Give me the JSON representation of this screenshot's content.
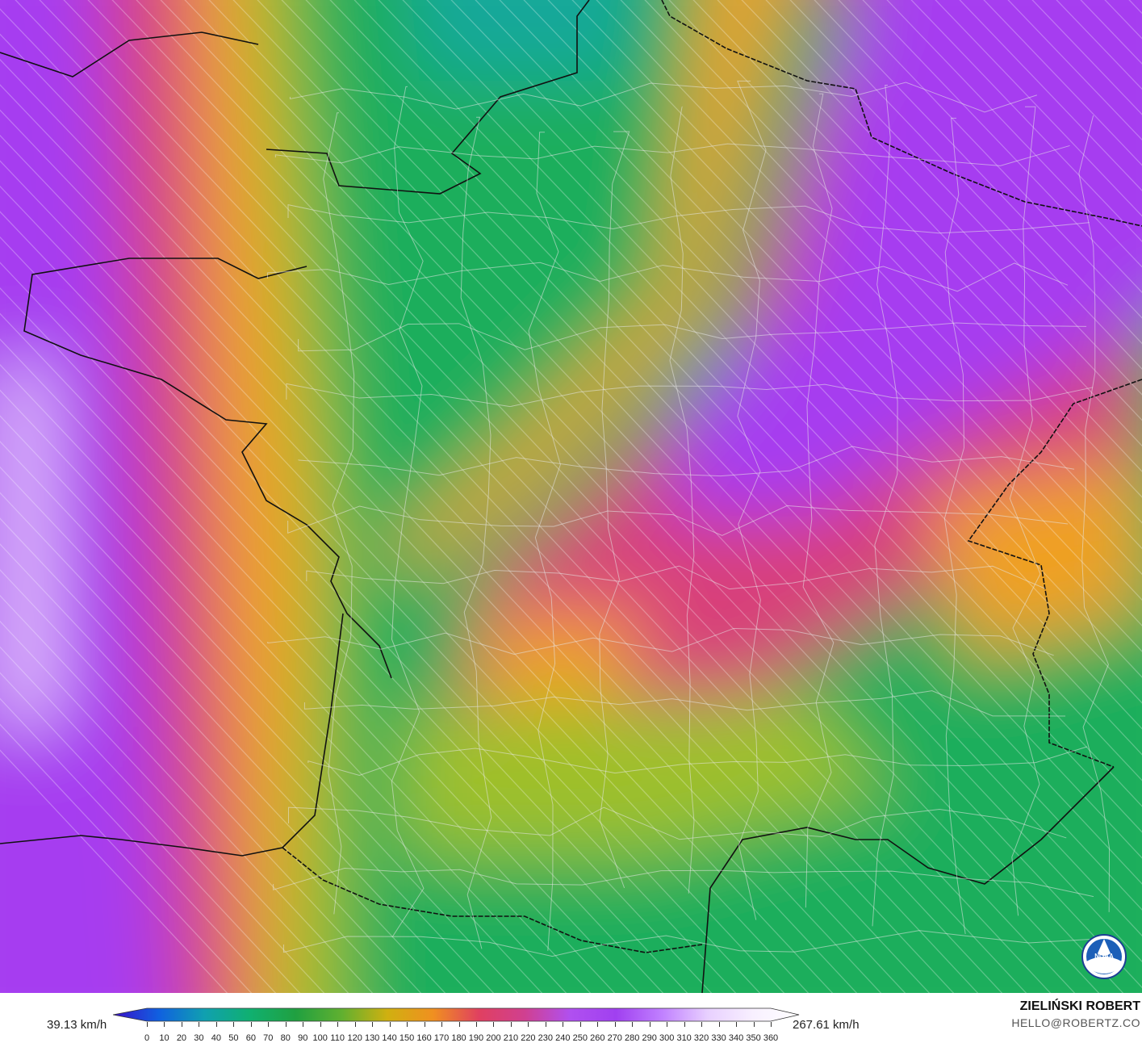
{
  "map": {
    "variable_unit": "km/h",
    "colors": {
      "purple": "#a63cf0",
      "magenta": "#d8407a",
      "orange": "#f0a020",
      "yellowgreen": "#9ec02c",
      "green": "#1cae5c",
      "teal": "#12a89a",
      "lavender": "#e8c8ff"
    }
  },
  "legend": {
    "min_label": "39.13 km/h",
    "max_label": "267.61 km/h",
    "ticks": [
      "0",
      "10",
      "20",
      "30",
      "40",
      "50",
      "60",
      "70",
      "80",
      "90",
      "100",
      "110",
      "120",
      "130",
      "140",
      "150",
      "160",
      "170",
      "180",
      "190",
      "200",
      "210",
      "220",
      "230",
      "240",
      "250",
      "260",
      "270",
      "280",
      "290",
      "300",
      "310",
      "320",
      "330",
      "340",
      "350",
      "360"
    ],
    "range": [
      0,
      360
    ],
    "gradient": [
      "#3a10c8",
      "#1060e0",
      "#10a0b0",
      "#10b070",
      "#20a040",
      "#60b030",
      "#d0b010",
      "#f09020",
      "#e04060",
      "#d04090",
      "#b050f0",
      "#a040f0",
      "#c080ff",
      "#e8d0ff",
      "#f8f0ff",
      "#ffffff"
    ]
  },
  "branding": {
    "name": "ZIELIŃSKI ROBERT",
    "email": "HELLO@ROBERTZ.CO",
    "logo_text": "NOAA"
  }
}
